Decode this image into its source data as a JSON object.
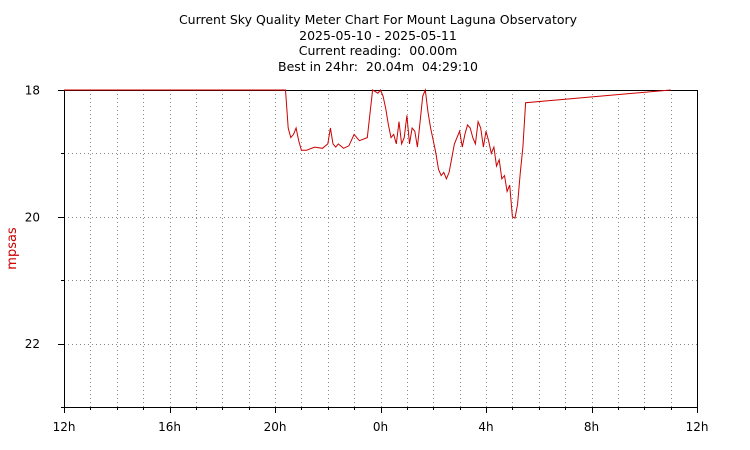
{
  "header": {
    "title": "Current Sky Quality Meter Chart For Mount Laguna Observatory",
    "date_range": "2025-05-10 - 2025-05-11",
    "current_reading": "Current reading:  00.00m",
    "best_24hr": "Best in 24hr:  20.04m  04:29:10"
  },
  "colors": {
    "series": "#cc0000",
    "grid": "#888888",
    "axis": "#000000"
  },
  "chart_data": {
    "type": "line",
    "title": "Current Sky Quality Meter Chart For Mount Laguna Observatory",
    "ylabel": "mpsas",
    "xlabel": "",
    "y_inverted": true,
    "ylim": [
      18,
      23
    ],
    "y_ticks": [
      18,
      20,
      22
    ],
    "xlim": [
      12,
      36
    ],
    "x_ticks": [
      12,
      16,
      20,
      24,
      28,
      32,
      36
    ],
    "x_tick_labels": [
      "12h",
      "16h",
      "20h",
      "0h",
      "4h",
      "8h",
      "12h"
    ],
    "grid": true,
    "series": [
      {
        "x": [
          12.0,
          20.0,
          20.4,
          20.5,
          20.6,
          20.7,
          20.8,
          20.9,
          21.0,
          21.2,
          21.5,
          21.8,
          22.0,
          22.1,
          22.2,
          22.3,
          22.4,
          22.6,
          22.8,
          23.0,
          23.2,
          23.5,
          23.7,
          23.9,
          24.0,
          24.1,
          24.2,
          24.3,
          24.4,
          24.5,
          24.6,
          24.7,
          24.8,
          24.9,
          25.0,
          25.1,
          25.2,
          25.3,
          25.4,
          25.5,
          25.6,
          25.7,
          25.8,
          25.9,
          26.0,
          26.1,
          26.2,
          26.3,
          26.4,
          26.5,
          26.6,
          26.8,
          27.0,
          27.1,
          27.2,
          27.3,
          27.4,
          27.5,
          27.6,
          27.7,
          27.8,
          27.9,
          28.0,
          28.1,
          28.2,
          28.3,
          28.4,
          28.5,
          28.6,
          28.7,
          28.8,
          28.9,
          29.0,
          29.1,
          29.2,
          29.3,
          29.4,
          29.5,
          35.0
        ],
        "y": [
          18.0,
          18.0,
          18.0,
          18.6,
          18.75,
          18.7,
          18.6,
          18.8,
          18.95,
          18.95,
          18.9,
          18.92,
          18.85,
          18.6,
          18.85,
          18.9,
          18.85,
          18.92,
          18.88,
          18.7,
          18.8,
          18.75,
          18.0,
          18.05,
          18.0,
          18.1,
          18.3,
          18.55,
          18.75,
          18.7,
          18.85,
          18.5,
          18.85,
          18.75,
          18.4,
          18.85,
          18.6,
          18.65,
          18.9,
          18.5,
          18.1,
          18.0,
          18.35,
          18.6,
          18.8,
          19.0,
          19.25,
          19.35,
          19.3,
          19.4,
          19.3,
          18.85,
          18.65,
          18.9,
          18.7,
          18.55,
          18.6,
          18.75,
          18.85,
          18.5,
          18.6,
          18.9,
          18.65,
          18.8,
          19.0,
          18.9,
          19.2,
          19.1,
          19.4,
          19.35,
          19.6,
          19.5,
          20.0,
          20.02,
          19.8,
          19.3,
          18.9,
          18.2,
          18.0
        ]
      }
    ]
  }
}
